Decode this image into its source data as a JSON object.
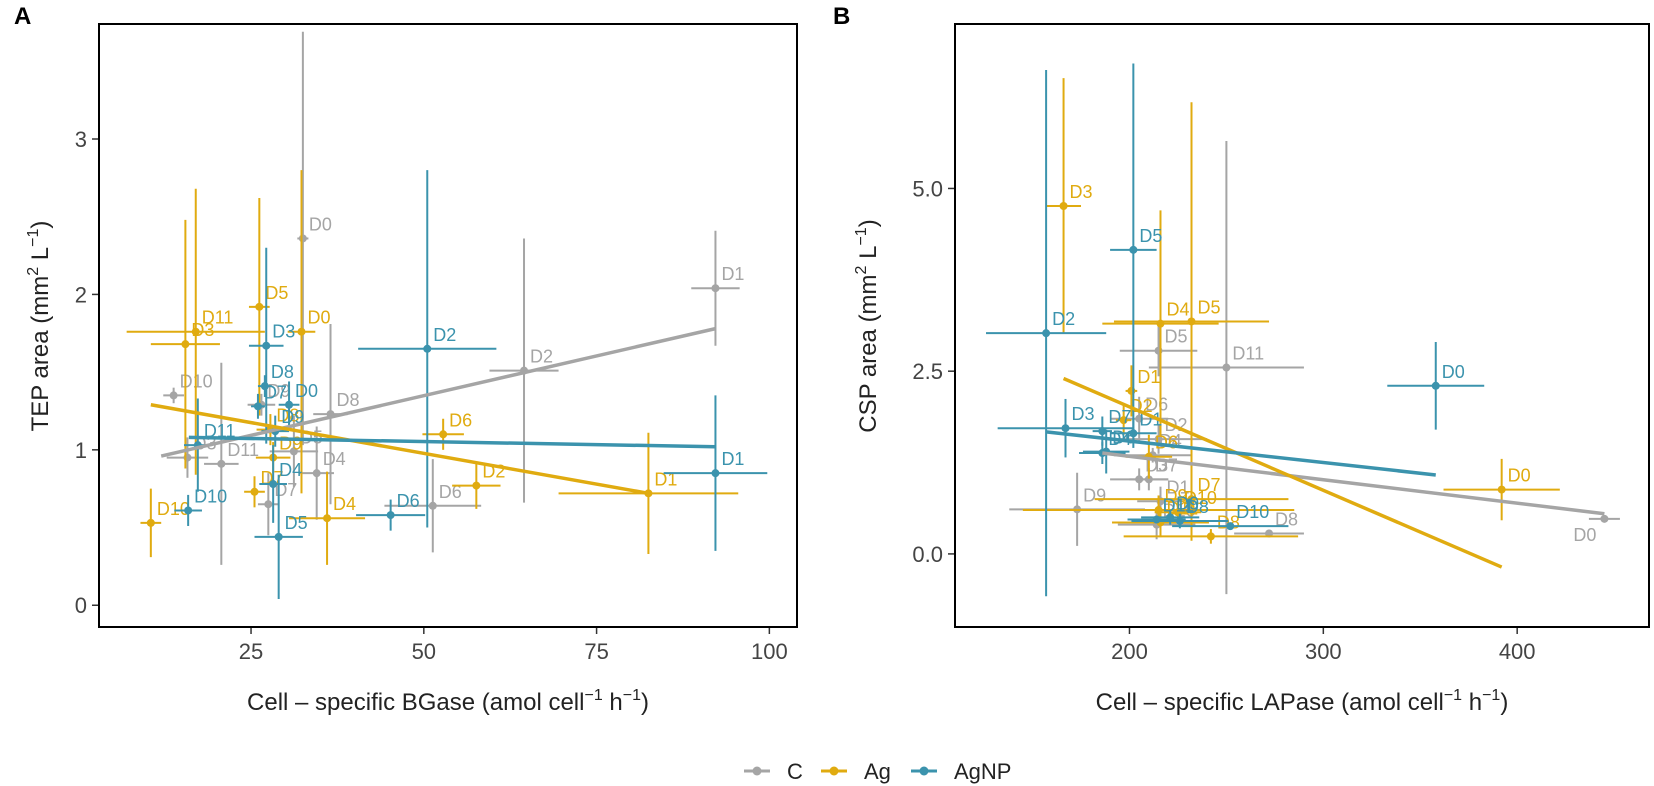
{
  "colors": {
    "C": "#a5a5a5",
    "Ag": "#e0ab10",
    "AgNP": "#3b93ad",
    "frame": "#000000"
  },
  "legend": {
    "items": [
      {
        "key": "C",
        "label": "C"
      },
      {
        "key": "Ag",
        "label": "Ag"
      },
      {
        "key": "AgNP",
        "label": "AgNP"
      }
    ]
  },
  "chart_data": [
    {
      "type": "scatter",
      "panel_label": "A",
      "xlabel": {
        "main": "Cell – specific BGase (amol cell",
        "sup1": "−1",
        "mid": " h",
        "sup2": "−1",
        "end": ")"
      },
      "ylabel": {
        "main": "TEP area (mm",
        "sup1": "2",
        "mid": " L",
        "sup2": "−1",
        "end": ")"
      },
      "xlim": [
        3,
        104
      ],
      "ylim": [
        -0.14,
        3.74
      ],
      "xticks": [
        25,
        50,
        75,
        100
      ],
      "xtick_labels": [
        "25",
        "50",
        "75",
        "100"
      ],
      "yticks": [
        0,
        1,
        2,
        3
      ],
      "ytick_labels": [
        "0",
        "1",
        "2",
        "3"
      ],
      "series": [
        {
          "name": "C",
          "points": [
            {
              "label": "D0",
              "x": 32.5,
              "y": 2.36,
              "xerr": 0.8,
              "yerr": 1.33
            },
            {
              "label": "D1",
              "x": 92.2,
              "y": 2.04,
              "xerr": 3.5,
              "yerr": 0.37
            },
            {
              "label": "D2",
              "x": 64.5,
              "y": 1.51,
              "xerr": 5.0,
              "yerr": 0.85
            },
            {
              "label": "D3",
              "x": 15.8,
              "y": 0.95,
              "xerr": 3.0,
              "yerr": 0.13
            },
            {
              "label": "D4",
              "x": 34.5,
              "y": 0.85,
              "xerr": 2.5,
              "yerr": 0.3
            },
            {
              "label": "D5",
              "x": 31.2,
              "y": 0.99,
              "xerr": 3.5,
              "yerr": 0.23
            },
            {
              "label": "D6",
              "x": 51.3,
              "y": 0.64,
              "xerr": 7.0,
              "yerr": 0.3
            },
            {
              "label": "D7",
              "x": 27.5,
              "y": 0.65,
              "xerr": 1.5,
              "yerr": 0.2
            },
            {
              "label": "D8",
              "x": 36.5,
              "y": 1.23,
              "xerr": 2.5,
              "yerr": 0.58
            },
            {
              "label": "D9",
              "x": 26.5,
              "y": 1.29,
              "xerr": 2.0,
              "yerr": 0.07
            },
            {
              "label": "D10",
              "x": 13.8,
              "y": 1.35,
              "xerr": 1.5,
              "yerr": 0.05
            },
            {
              "label": "D11",
              "x": 20.7,
              "y": 0.91,
              "xerr": 2.5,
              "yerr": 0.65
            }
          ],
          "trend": {
            "x": [
              12,
              92.2
            ],
            "y": [
              0.96,
              1.78
            ]
          }
        },
        {
          "name": "Ag",
          "points": [
            {
              "label": "D0",
              "x": 32.3,
              "y": 1.76,
              "xerr": 2.0,
              "yerr": 1.04
            },
            {
              "label": "D1",
              "x": 82.5,
              "y": 0.72,
              "xerr": 13.0,
              "yerr": 0.39
            },
            {
              "label": "D2",
              "x": 57.6,
              "y": 0.77,
              "xerr": 3.5,
              "yerr": 0.15
            },
            {
              "label": "D3",
              "x": 15.5,
              "y": 1.68,
              "xerr": 5.0,
              "yerr": 0.8
            },
            {
              "label": "D4",
              "x": 36.0,
              "y": 0.56,
              "xerr": 5.5,
              "yerr": 0.3
            },
            {
              "label": "D5",
              "x": 26.2,
              "y": 1.92,
              "xerr": 1.5,
              "yerr": 0.7
            },
            {
              "label": "D6",
              "x": 52.8,
              "y": 1.1,
              "xerr": 3.0,
              "yerr": 0.1
            },
            {
              "label": "D7",
              "x": 25.5,
              "y": 0.73,
              "xerr": 1.5,
              "yerr": 0.1
            },
            {
              "label": "D8",
              "x": 27.8,
              "y": 1.13,
              "xerr": 2.0,
              "yerr": 0.1
            },
            {
              "label": "D9",
              "x": 28.2,
              "y": 0.95,
              "xerr": 2.5,
              "yerr": 0.1
            },
            {
              "label": "D10",
              "x": 10.5,
              "y": 0.53,
              "xerr": 1.5,
              "yerr": 0.22
            },
            {
              "label": "D11",
              "x": 17.0,
              "y": 1.76,
              "xerr": 10.0,
              "yerr": 0.92
            }
          ],
          "trend": {
            "x": [
              10.5,
              82.5
            ],
            "y": [
              1.29,
              0.72
            ]
          }
        },
        {
          "name": "AgNP",
          "points": [
            {
              "label": "D0",
              "x": 30.5,
              "y": 1.29,
              "xerr": 1.5,
              "yerr": 0.15
            },
            {
              "label": "D1",
              "x": 92.2,
              "y": 0.85,
              "xerr": 7.5,
              "yerr": 0.5
            },
            {
              "label": "D2",
              "x": 50.5,
              "y": 1.65,
              "xerr": 10.0,
              "yerr": 1.15
            },
            {
              "label": "D3",
              "x": 27.2,
              "y": 1.67,
              "xerr": 2.5,
              "yerr": 0.63
            },
            {
              "label": "D4",
              "x": 28.2,
              "y": 0.78,
              "xerr": 2.0,
              "yerr": 0.25
            },
            {
              "label": "D5",
              "x": 29.0,
              "y": 0.44,
              "xerr": 3.5,
              "yerr": 0.4
            },
            {
              "label": "D6",
              "x": 45.2,
              "y": 0.58,
              "xerr": 5.0,
              "yerr": 0.1
            },
            {
              "label": "D7",
              "x": 26.0,
              "y": 1.28,
              "xerr": 1.0,
              "yerr": 0.08
            },
            {
              "label": "D8",
              "x": 27.0,
              "y": 1.41,
              "xerr": 1.0,
              "yerr": 0.07
            },
            {
              "label": "D9",
              "x": 28.5,
              "y": 1.12,
              "xerr": 2.0,
              "yerr": 0.1
            },
            {
              "label": "D10",
              "x": 15.9,
              "y": 0.61,
              "xerr": 2.0,
              "yerr": 0.1
            },
            {
              "label": "D11",
              "x": 17.3,
              "y": 1.03,
              "xerr": 2.0,
              "yerr": 0.3
            }
          ],
          "trend": {
            "x": [
              16,
              92.2
            ],
            "y": [
              1.08,
              1.02
            ]
          }
        }
      ]
    },
    {
      "type": "scatter",
      "panel_label": "B",
      "xlabel": {
        "main": "Cell – specific LAPase (amol cell",
        "sup1": "−1",
        "mid": " h",
        "sup2": "−1",
        "end": ")"
      },
      "ylabel": {
        "main": "CSP area (mm",
        "sup1": "2",
        "mid": " L",
        "sup2": "−1",
        "end": ")"
      },
      "xlim": [
        110,
        468
      ],
      "ylim": [
        -1.0,
        7.25
      ],
      "xticks": [
        200,
        300,
        400
      ],
      "xtick_labels": [
        "200",
        "300",
        "400"
      ],
      "yticks": [
        0,
        2.5,
        5
      ],
      "ytick_labels": [
        "0.0",
        "2.5",
        "5.0"
      ],
      "series": [
        {
          "name": "C",
          "points": [
            {
              "label": "D0",
              "x": 445,
              "y": 0.48,
              "xerr": 8,
              "yerr": 0.05
            },
            {
              "label": "D1",
              "x": 216,
              "y": 0.72,
              "xerr": 12,
              "yerr": 0.2
            },
            {
              "label": "D2",
              "x": 215,
              "y": 1.57,
              "xerr": 25,
              "yerr": 0.2
            },
            {
              "label": "D3",
              "x": 205,
              "y": 1.02,
              "xerr": 15,
              "yerr": 0.15
            },
            {
              "label": "D4",
              "x": 212,
              "y": 1.35,
              "xerr": 20,
              "yerr": 0.1
            },
            {
              "label": "D5",
              "x": 215,
              "y": 2.78,
              "xerr": 20,
              "yerr": 0.35
            },
            {
              "label": "D6",
              "x": 205,
              "y": 1.85,
              "xerr": 15,
              "yerr": 0.3
            },
            {
              "label": "D7",
              "x": 210,
              "y": 1.02,
              "xerr": 10,
              "yerr": 0.15
            },
            {
              "label": "D8",
              "x": 272,
              "y": 0.28,
              "xerr": 18,
              "yerr": 0.05
            },
            {
              "label": "D9",
              "x": 173,
              "y": 0.61,
              "xerr": 35,
              "yerr": 0.5
            },
            {
              "label": "D10",
              "x": 214,
              "y": 0.4,
              "xerr": 20,
              "yerr": 0.2
            },
            {
              "label": "D11",
              "x": 250,
              "y": 2.55,
              "xerr": 40,
              "yerr": 3.1
            }
          ],
          "trend": {
            "x": [
              186,
              445
            ],
            "y": [
              1.38,
              0.55
            ]
          }
        },
        {
          "name": "Ag",
          "points": [
            {
              "label": "D0",
              "x": 392,
              "y": 0.88,
              "xerr": 30,
              "yerr": 0.42
            },
            {
              "label": "D1",
              "x": 201,
              "y": 2.23,
              "xerr": 3,
              "yerr": 0.35
            },
            {
              "label": "D2",
              "x": 197,
              "y": 1.83,
              "xerr": 4,
              "yerr": 0.2
            },
            {
              "label": "D3",
              "x": 166,
              "y": 4.76,
              "xerr": 9,
              "yerr": 1.75
            },
            {
              "label": "D4",
              "x": 216,
              "y": 3.15,
              "xerr": 30,
              "yerr": 1.55
            },
            {
              "label": "D5",
              "x": 232,
              "y": 3.18,
              "xerr": 40,
              "yerr": 3.0
            },
            {
              "label": "D6",
              "x": 210,
              "y": 1.33,
              "xerr": 12,
              "yerr": 0.3
            },
            {
              "label": "D7",
              "x": 232,
              "y": 0.75,
              "xerr": 50,
              "yerr": 0.2
            },
            {
              "label": "D8",
              "x": 242,
              "y": 0.24,
              "xerr": 45,
              "yerr": 0.1
            },
            {
              "label": "D9",
              "x": 215,
              "y": 0.6,
              "xerr": 70,
              "yerr": 0.2
            },
            {
              "label": "D10",
              "x": 225,
              "y": 0.57,
              "xerr": 12,
              "yerr": 0.15
            },
            {
              "label": "D11",
              "x": 216,
              "y": 0.43,
              "xerr": 25,
              "yerr": 0.2
            }
          ],
          "trend": {
            "x": [
              166,
              392
            ],
            "y": [
              2.4,
              -0.18
            ]
          }
        },
        {
          "name": "AgNP",
          "points": [
            {
              "label": "D0",
              "x": 358,
              "y": 2.3,
              "xerr": 25,
              "yerr": 0.6
            },
            {
              "label": "D1",
              "x": 202,
              "y": 1.65,
              "xerr": 12,
              "yerr": 0.2
            },
            {
              "label": "D2",
              "x": 157,
              "y": 3.02,
              "xerr": 31,
              "yerr": 3.6
            },
            {
              "label": "D3",
              "x": 167,
              "y": 1.72,
              "xerr": 35,
              "yerr": 0.4
            },
            {
              "label": "D4",
              "x": 186,
              "y": 1.38,
              "xerr": 12,
              "yerr": 0.15
            },
            {
              "label": "D5",
              "x": 202,
              "y": 4.16,
              "xerr": 12,
              "yerr": 2.55
            },
            {
              "label": "D6",
              "x": 188,
              "y": 1.4,
              "xerr": 12,
              "yerr": 0.3
            },
            {
              "label": "D7",
              "x": 186,
              "y": 1.68,
              "xerr": 5,
              "yerr": 0.2
            },
            {
              "label": "D8",
              "x": 226,
              "y": 0.45,
              "xerr": 25,
              "yerr": 0.1
            },
            {
              "label": "D9",
              "x": 221,
              "y": 0.5,
              "xerr": 15,
              "yerr": 0.1
            },
            {
              "label": "D10",
              "x": 252,
              "y": 0.38,
              "xerr": 30,
              "yerr": 0.05
            },
            {
              "label": "D11",
              "x": 214,
              "y": 0.47,
              "xerr": 15,
              "yerr": 0.05
            }
          ],
          "trend": {
            "x": [
              157,
              358
            ],
            "y": [
              1.67,
              1.08
            ]
          }
        }
      ]
    }
  ]
}
